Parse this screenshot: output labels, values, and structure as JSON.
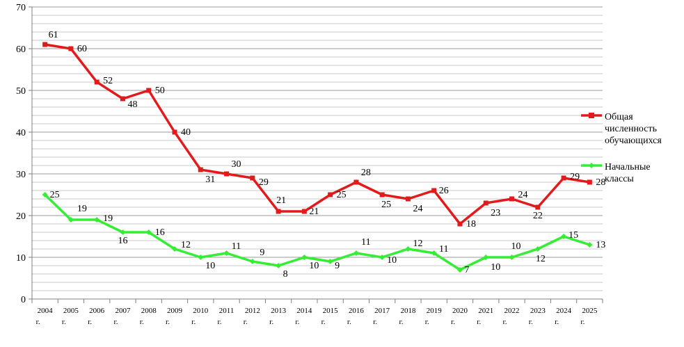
{
  "chart_data": {
    "type": "line",
    "categories": [
      "2004 г.",
      "2005 г.",
      "2006 г.",
      "2007 г.",
      "2008 г.",
      "2009 г.",
      "2010 г.",
      "2011 г.",
      "2012 г.",
      "2013 г.",
      "2014 г.",
      "2015 г.",
      "2016 г.",
      "2017 г.",
      "2018 г.",
      "2019 г.",
      "2020 г.",
      "2021 г.",
      "2022 г.",
      "2023 г.",
      "2024 г.",
      "2025 г."
    ],
    "series": [
      {
        "name": "Общая численность обучающихся",
        "legend_lines": [
          "Общая",
          "численность",
          "обучающихся"
        ],
        "color": "#e31a1c",
        "marker": "square",
        "values": [
          61,
          60,
          52,
          48,
          50,
          40,
          31,
          30,
          29,
          21,
          21,
          25,
          28,
          25,
          24,
          26,
          18,
          23,
          24,
          22,
          29,
          28
        ]
      },
      {
        "name": "Начальные классы",
        "legend_lines": [
          "Начальные",
          "классы"
        ],
        "color": "#33ee33",
        "marker": "diamond",
        "values": [
          25,
          19,
          19,
          16,
          16,
          12,
          10,
          11,
          9,
          8,
          10,
          9,
          11,
          10,
          12,
          11,
          7,
          10,
          10,
          12,
          15,
          13
        ]
      }
    ],
    "ylim": [
      0,
      70
    ],
    "y_ticks": [
      0,
      10,
      20,
      30,
      40,
      50,
      60,
      70
    ],
    "minor_grid_step": 2,
    "grid": true,
    "legend_position": "right",
    "title": "",
    "xlabel": "",
    "ylabel": ""
  }
}
